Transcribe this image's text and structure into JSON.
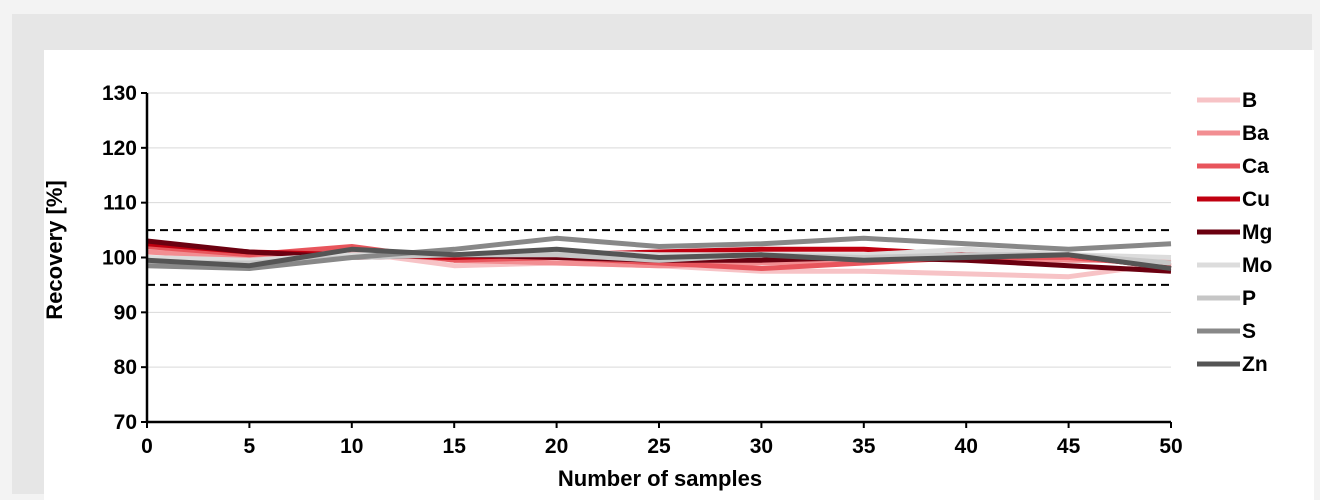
{
  "chart_data": {
    "type": "line",
    "title": "",
    "xlabel": "Number of samples",
    "ylabel": "Recovery [%]",
    "xlim": [
      0,
      50
    ],
    "ylim": [
      70,
      130
    ],
    "x_ticks": [
      0,
      5,
      10,
      15,
      20,
      25,
      30,
      35,
      40,
      45,
      50
    ],
    "y_ticks": [
      70,
      80,
      90,
      100,
      110,
      120,
      130
    ],
    "grid": true,
    "legend_position": "right",
    "reference_lines": [
      {
        "y": 105,
        "style": "dashed",
        "color": "#000000"
      },
      {
        "y": 95,
        "style": "dashed",
        "color": "#000000"
      }
    ],
    "x": [
      0,
      5,
      10,
      15,
      20,
      25,
      30,
      35,
      40,
      45,
      50
    ],
    "series": [
      {
        "name": "B",
        "color": "#f7c3c6",
        "values": [
          101.5,
          100.0,
          101.0,
          98.5,
          99.0,
          98.5,
          97.5,
          97.5,
          97.0,
          96.5,
          99.0
        ]
      },
      {
        "name": "Ba",
        "color": "#f28e92",
        "values": [
          101.0,
          100.0,
          101.5,
          99.5,
          99.0,
          98.5,
          99.0,
          99.5,
          100.0,
          99.5,
          99.5
        ]
      },
      {
        "name": "Ca",
        "color": "#e8555c",
        "values": [
          102.0,
          100.5,
          102.0,
          99.5,
          100.0,
          99.0,
          98.0,
          99.0,
          100.0,
          100.0,
          98.5
        ]
      },
      {
        "name": "Cu",
        "color": "#c00010",
        "values": [
          102.5,
          101.0,
          100.5,
          100.0,
          100.5,
          101.0,
          101.5,
          101.5,
          100.5,
          100.5,
          98.0
        ]
      },
      {
        "name": "Mg",
        "color": "#6b0010",
        "values": [
          103.0,
          101.0,
          100.0,
          100.5,
          100.0,
          99.5,
          99.5,
          100.0,
          99.5,
          98.5,
          97.5
        ]
      },
      {
        "name": "Mo",
        "color": "#dcdcdc",
        "values": [
          100.0,
          99.5,
          100.5,
          100.5,
          101.0,
          100.5,
          100.5,
          100.5,
          101.5,
          100.5,
          100.0
        ]
      },
      {
        "name": "P",
        "color": "#c6c6c6",
        "values": [
          99.0,
          99.0,
          100.0,
          100.5,
          100.5,
          99.5,
          100.5,
          100.0,
          100.5,
          100.5,
          99.0
        ]
      },
      {
        "name": "S",
        "color": "#888888",
        "values": [
          98.5,
          98.0,
          100.0,
          101.5,
          103.5,
          102.0,
          102.5,
          103.5,
          102.5,
          101.5,
          102.5
        ]
      },
      {
        "name": "Zn",
        "color": "#555555",
        "values": [
          99.5,
          98.5,
          101.5,
          100.5,
          101.5,
          100.0,
          100.5,
          99.5,
          100.0,
          100.5,
          98.0
        ]
      }
    ]
  }
}
